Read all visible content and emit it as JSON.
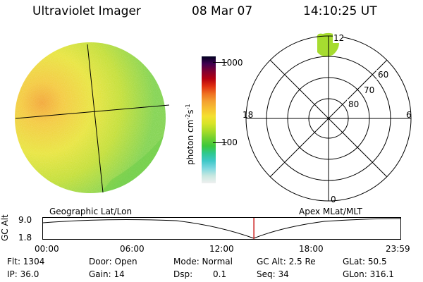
{
  "header": {
    "instrument": "Ultraviolet Imager",
    "date": "08 Mar 07",
    "time": "14:10:25 UT"
  },
  "colorbar": {
    "unit_label": "photon cm",
    "exp1": "-2",
    "mid": "s",
    "exp2": "-1",
    "ticks": [
      "1000",
      "100"
    ],
    "colors": [
      "#f0f0f0",
      "#c8e8e0",
      "#7ed8e0",
      "#3ec8c8",
      "#2ec890",
      "#3cc83c",
      "#70d030",
      "#a8dc28",
      "#d8e428",
      "#f4e030",
      "#f6c030",
      "#f4a030",
      "#ee7020",
      "#e03010",
      "#b40010",
      "#800030",
      "#400050",
      "#000020"
    ]
  },
  "polar": {
    "mlt_labels": [
      "12",
      "18",
      "6",
      "0"
    ],
    "mlat_labels": [
      "60",
      "70",
      "80"
    ]
  },
  "timeline": {
    "ylabel": "GC Alt",
    "ymax": "9.0",
    "ymin": "1.8",
    "left_title": "Geographic Lat/Lon",
    "right_title": "Apex MLat/MLT",
    "ticks": [
      "00:00",
      "06:00",
      "12:00",
      "18:00",
      "23:59"
    ],
    "current_fraction": 0.59
  },
  "info": {
    "flt": "Flt: 1304",
    "ip": "IP: 36.0",
    "door": "Door: Open",
    "gain": "Gain: 14",
    "mode": "Mode: Normal",
    "dsp_label": "Dsp:",
    "dsp_value": "0.1",
    "gcalt": "GC Alt: 2.5 Re",
    "seq": "Seq: 34",
    "glat": "GLat: 50.5",
    "glon": "GLon: 316.1"
  }
}
